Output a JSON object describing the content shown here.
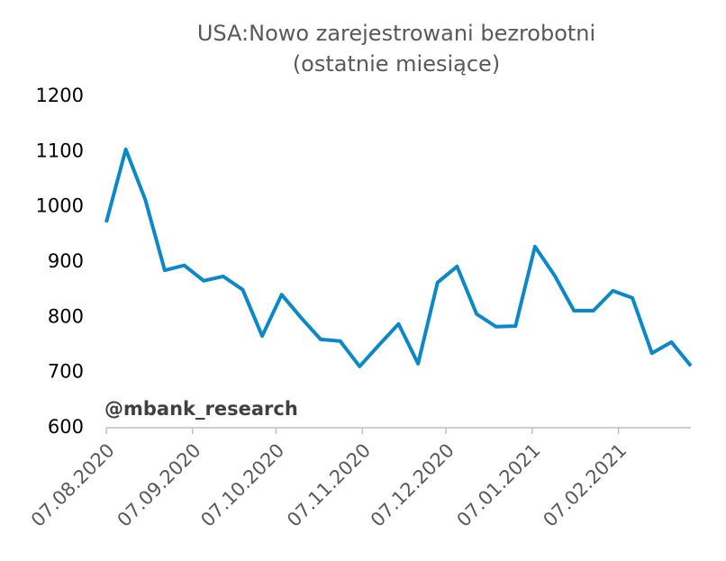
{
  "chart_data": {
    "type": "line",
    "title": "USA:Nowo zarejestrowani bezrobotni",
    "subtitle": "(ostatnie miesiące)",
    "annotation": "@mbank_research",
    "x": [
      "07.08.2020",
      "14.08.2020",
      "21.08.2020",
      "28.08.2020",
      "04.09.2020",
      "11.09.2020",
      "18.09.2020",
      "25.09.2020",
      "02.10.2020",
      "09.10.2020",
      "16.10.2020",
      "23.10.2020",
      "30.10.2020",
      "06.11.2020",
      "13.11.2020",
      "20.11.2020",
      "27.11.2020",
      "04.12.2020",
      "11.12.2020",
      "18.12.2020",
      "25.12.2020",
      "01.01.2021",
      "08.01.2021",
      "15.01.2021",
      "22.01.2021",
      "29.01.2021",
      "05.02.2021",
      "12.02.2021",
      "19.02.2021",
      "26.02.2021",
      "05.03.2021"
    ],
    "series": [
      {
        "name": "Nowo zarejestrowani bezrobotni",
        "color": "#0a88c8",
        "values": [
          972,
          1104,
          1013,
          885,
          894,
          866,
          874,
          850,
          766,
          841,
          799,
          760,
          757,
          711,
          750,
          788,
          716,
          863,
          892,
          806,
          783,
          784,
          928,
          876,
          812,
          812,
          848,
          835,
          735,
          755,
          712
        ]
      }
    ],
    "xlim": [
      "07.08.2020",
      "05.03.2021"
    ],
    "xticks": [
      "07.08.2020",
      "07.09.2020",
      "07.10.2020",
      "07.11.2020",
      "07.12.2020",
      "07.01.2021",
      "07.02.2021"
    ],
    "ylim": [
      600,
      1200
    ],
    "yticks": [
      600,
      700,
      800,
      900,
      1000,
      1100,
      1200
    ]
  }
}
